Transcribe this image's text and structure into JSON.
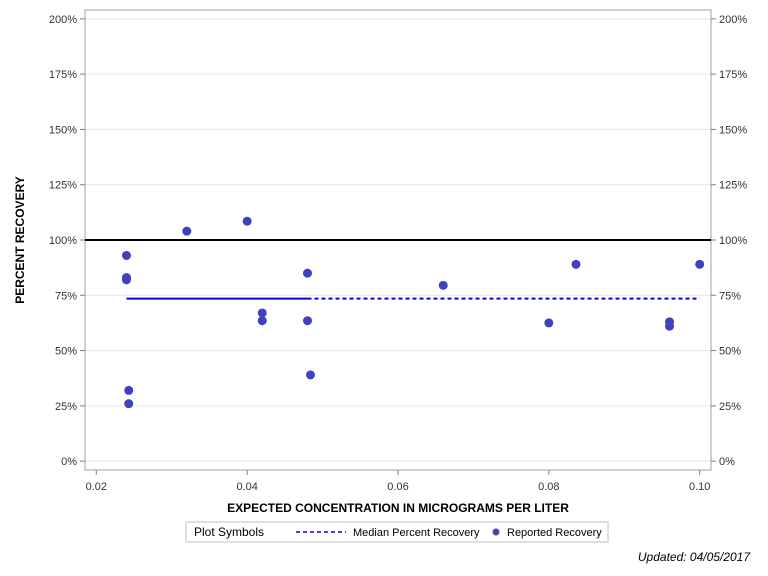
{
  "chart_data": {
    "type": "scatter",
    "xlabel": "EXPECTED CONCENTRATION IN MICROGRAMS PER LITER",
    "ylabel": "PERCENT RECOVERY",
    "xlim": [
      0.0185,
      0.1015
    ],
    "ylim": [
      -0.04,
      2.04
    ],
    "x_ticks": [
      0.02,
      0.04,
      0.06,
      0.08,
      0.1
    ],
    "x_tick_labels": [
      "0.02",
      "0.04",
      "0.06",
      "0.08",
      "0.10"
    ],
    "y_ticks": [
      0,
      0.25,
      0.5,
      0.75,
      1.0,
      1.25,
      1.5,
      1.75,
      2.0
    ],
    "y_tick_labels": [
      "0%",
      "25%",
      "50%",
      "75%",
      "100%",
      "125%",
      "150%",
      "175%",
      "200%"
    ],
    "reference_line": {
      "y": 1.0,
      "color": "#000000"
    },
    "grid": true,
    "series": [
      {
        "name": "Reported Recovery",
        "color": "#4040c0",
        "points": [
          {
            "x": 0.024,
            "y": 0.93
          },
          {
            "x": 0.024,
            "y": 0.83
          },
          {
            "x": 0.024,
            "y": 0.82
          },
          {
            "x": 0.0243,
            "y": 0.32
          },
          {
            "x": 0.0243,
            "y": 0.26
          },
          {
            "x": 0.032,
            "y": 1.04
          },
          {
            "x": 0.04,
            "y": 1.085
          },
          {
            "x": 0.042,
            "y": 0.67
          },
          {
            "x": 0.042,
            "y": 0.635
          },
          {
            "x": 0.048,
            "y": 0.85
          },
          {
            "x": 0.048,
            "y": 0.635
          },
          {
            "x": 0.0484,
            "y": 0.39
          },
          {
            "x": 0.066,
            "y": 0.795
          },
          {
            "x": 0.08,
            "y": 0.625
          },
          {
            "x": 0.0836,
            "y": 0.89
          },
          {
            "x": 0.096,
            "y": 0.63
          },
          {
            "x": 0.096,
            "y": 0.61
          },
          {
            "x": 0.1,
            "y": 0.89
          }
        ]
      },
      {
        "name": "Median Percent Recovery",
        "color": "#0000ee",
        "segments": [
          {
            "x0": 0.024,
            "x1": 0.048,
            "y": 0.735,
            "style": "solid"
          },
          {
            "x0": 0.048,
            "x1": 0.1,
            "y": 0.735,
            "style": "dashed"
          }
        ]
      }
    ]
  },
  "legend": {
    "title": "Plot Symbols",
    "items": [
      {
        "label": "Median Percent Recovery",
        "symbol": "dashed-line"
      },
      {
        "label": "Reported Recovery",
        "symbol": "dot"
      }
    ]
  },
  "footer": {
    "updated": "Updated: 04/05/2017"
  }
}
